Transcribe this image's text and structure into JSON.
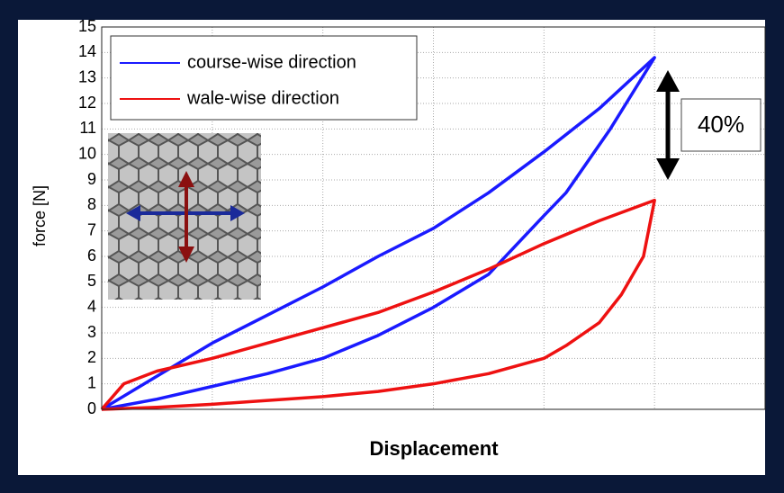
{
  "chart_data": {
    "type": "line",
    "xlabel": "Displacement",
    "ylabel": "force [N]",
    "annotation": "40%",
    "xlim": [
      0,
      6
    ],
    "xticks": [
      0,
      1,
      2,
      3,
      4,
      5,
      6
    ],
    "x_tick_labels": false,
    "ylim": [
      0,
      15
    ],
    "yticks": [
      0,
      1,
      2,
      3,
      4,
      5,
      6,
      7,
      8,
      9,
      10,
      11,
      12,
      13,
      14,
      15
    ],
    "grid": true,
    "legend": "upper left",
    "series": [
      {
        "name": "course-wise direction",
        "color": "#1a1aff",
        "x": [
          0,
          0.5,
          1,
          1.5,
          2,
          2.5,
          3,
          3.5,
          4,
          4.5,
          5,
          4.6,
          4.2,
          4,
          3.5,
          3,
          2.5,
          2,
          1.5,
          1,
          0.5,
          0
        ],
        "values": [
          0,
          1.3,
          2.6,
          3.7,
          4.8,
          6.0,
          7.1,
          8.5,
          10.1,
          11.8,
          13.8,
          11.0,
          8.5,
          7.6,
          5.3,
          4.0,
          2.9,
          2.0,
          1.4,
          0.9,
          0.4,
          0
        ]
      },
      {
        "name": "wale-wise direction",
        "color": "#ee1111",
        "x": [
          0,
          0.2,
          0.5,
          1,
          1.5,
          2,
          2.5,
          3,
          3.5,
          4,
          4.5,
          5,
          4.9,
          4.7,
          4.5,
          4.2,
          4,
          3.5,
          3,
          2.5,
          2,
          1.5,
          1,
          0.5,
          0
        ],
        "values": [
          0,
          1.0,
          1.5,
          2.0,
          2.6,
          3.2,
          3.8,
          4.6,
          5.5,
          6.5,
          7.4,
          8.2,
          6.0,
          4.5,
          3.4,
          2.5,
          2.0,
          1.4,
          1.0,
          0.7,
          0.5,
          0.35,
          0.2,
          0.08,
          0
        ]
      }
    ]
  }
}
